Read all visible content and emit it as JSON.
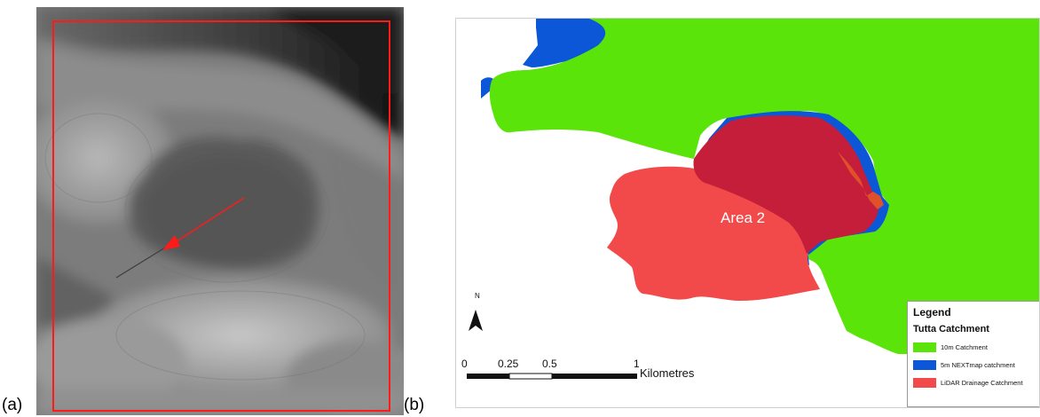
{
  "panels": {
    "a": {
      "label": "(a)"
    },
    "b": {
      "label": "(b)"
    }
  },
  "map": {
    "area_label": "Area 2",
    "north_label": "N",
    "scale_bar": {
      "ticks": [
        "0",
        "0.25",
        "0.5",
        "1"
      ],
      "unit": "Kilometres"
    },
    "legend": {
      "title": "Legend",
      "subtitle": "Tutta Catchment",
      "items": [
        {
          "label": "10m Catchment",
          "color": "#5ae40a"
        },
        {
          "label": "5m NEXTmap catchment",
          "color": "#0b57d8"
        },
        {
          "label": "LiDAR Drainage Catchment",
          "color": "#f24a4a"
        }
      ]
    },
    "colors": {
      "green": "#5ae40a",
      "blue": "#0b57d8",
      "red": "#f24a4a",
      "overlap": "#c41e3a",
      "frame": "#ff1a1a",
      "arrow": "#ff1a1a"
    }
  }
}
